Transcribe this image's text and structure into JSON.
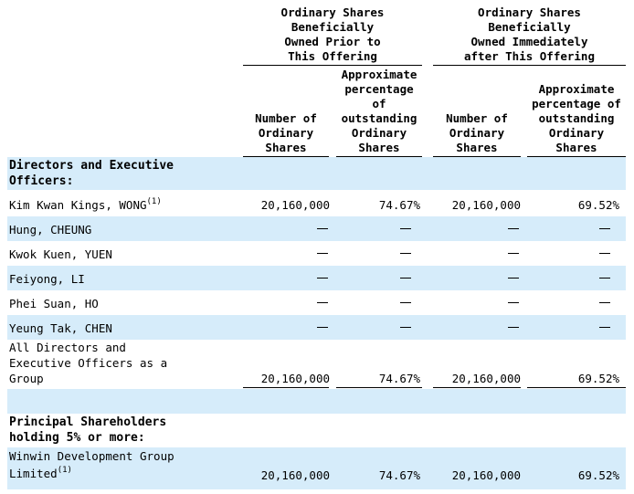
{
  "header": {
    "group_prior": "Ordinary Shares\nBeneficially\nOwned Prior to\nThis Offering",
    "group_after": "Ordinary Shares\nBeneficially\nOwned Immediately\nafter This Offering",
    "col_number_prior": "Number of\nOrdinary\nShares",
    "col_pct_prior": "Approximate\npercentage\nof\noutstanding\nOrdinary\nShares",
    "col_number_after": "Number of\nOrdinary\nShares",
    "col_pct_after": "Approximate\npercentage of\noutstanding\nOrdinary\nShares"
  },
  "sections": {
    "directors": "Directors and Executive\n  Officers:",
    "principal": "Principal Shareholders\n  holding 5% or more:"
  },
  "rows": [
    {
      "name": "Kim Kwan Kings, WONG",
      "footnote": "(1)",
      "num_prior": "20,160,000",
      "pct_prior": "74.67%",
      "num_after": "20,160,000",
      "pct_after": "69.52%"
    },
    {
      "name": "Hung, CHEUNG",
      "num_prior": "—",
      "pct_prior": "—",
      "num_after": "—",
      "pct_after": "—"
    },
    {
      "name": "Kwok Kuen, YUEN",
      "num_prior": "—",
      "pct_prior": "—",
      "num_after": "—",
      "pct_after": "—"
    },
    {
      "name": "Feiyong, LI",
      "num_prior": "—",
      "pct_prior": "—",
      "num_after": "—",
      "pct_after": "—"
    },
    {
      "name": "Phei Suan, HO",
      "num_prior": "—",
      "pct_prior": "—",
      "num_after": "—",
      "pct_after": "—"
    },
    {
      "name": "Yeung Tak, CHEN",
      "num_prior": "—",
      "pct_prior": "—",
      "num_after": "—",
      "pct_after": "—"
    },
    {
      "name": "All Directors and\n  Executive  Officers as a\n  Group",
      "num_prior": "20,160,000",
      "pct_prior": "74.67%",
      "num_after": "20,160,000",
      "pct_after": "69.52%"
    },
    {
      "name_line1": "Winwin Development Group",
      "name_line2": "  Limited",
      "footnote": "(1)",
      "num_prior": "20,160,000",
      "pct_prior": "74.67%",
      "num_after": "20,160,000",
      "pct_after": "69.52%"
    }
  ]
}
